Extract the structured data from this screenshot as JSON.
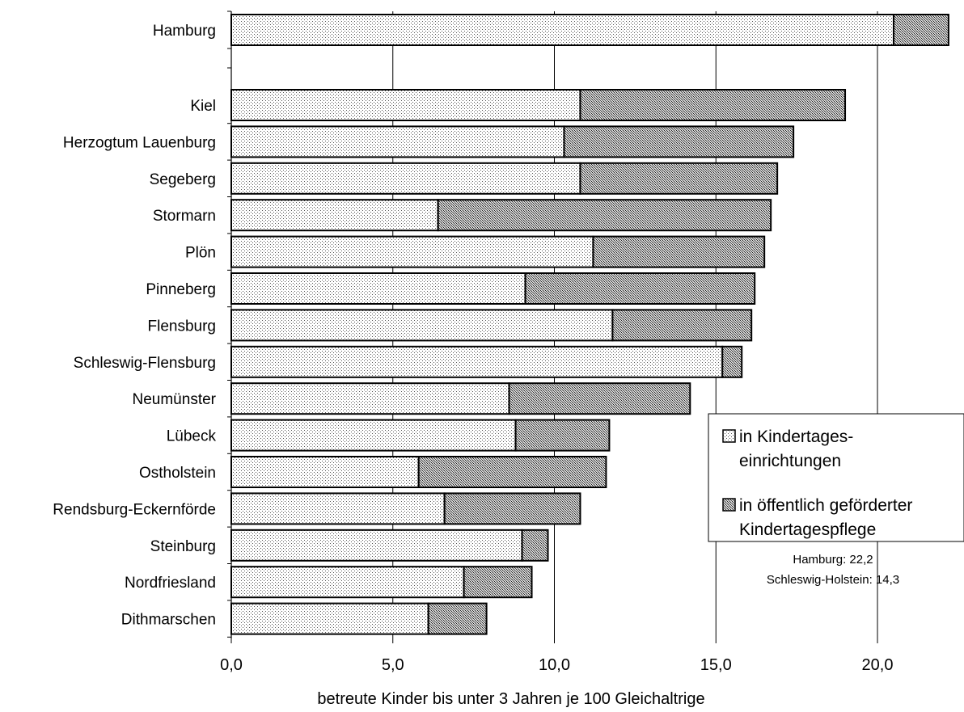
{
  "chart_data": {
    "type": "bar",
    "orientation": "horizontal",
    "stacked": true,
    "categories": [
      "Hamburg",
      "Kiel",
      "Herzogtum Lauenburg",
      "Segeberg",
      "Stormarn",
      "Plön",
      "Pinneberg",
      "Flensburg",
      "Schleswig-Flensburg",
      "Neumünster",
      "Lübeck",
      "Ostholstein",
      "Rendsburg-Eckernförde",
      "Steinburg",
      "Nordfriesland",
      "Dithmarschen"
    ],
    "series": [
      {
        "name": "in Kindertages-\neinrichtungen",
        "legend_lines": [
          "in Kindertages-",
          "einrichtungen"
        ],
        "values": [
          20.5,
          10.8,
          10.3,
          10.8,
          6.4,
          11.2,
          9.1,
          11.8,
          15.2,
          8.6,
          8.8,
          5.8,
          6.6,
          9.0,
          7.2,
          6.1
        ]
      },
      {
        "name": "in öffentlich geförderter\nKindertagespflege",
        "legend_lines": [
          "in öffentlich geförderter",
          "Kindertagespflege"
        ],
        "values": [
          1.7,
          8.2,
          7.1,
          6.1,
          10.3,
          5.3,
          7.1,
          4.3,
          0.6,
          5.6,
          2.9,
          5.8,
          4.2,
          0.8,
          2.1,
          1.8
        ]
      }
    ],
    "x_ticks": [
      "0,0",
      "5,0",
      "10,0",
      "15,0",
      "20,0"
    ],
    "xlim": [
      0,
      22.5
    ],
    "xlabel": "betreute Kinder bis unter 3 Jahren je 100 Gleichaltrige",
    "ylabel": "",
    "title": "",
    "grid": "vertical",
    "legend_position": "right",
    "annotations": [
      "Hamburg: 22,2",
      "Schleswig-Holstein: 14,3"
    ]
  }
}
